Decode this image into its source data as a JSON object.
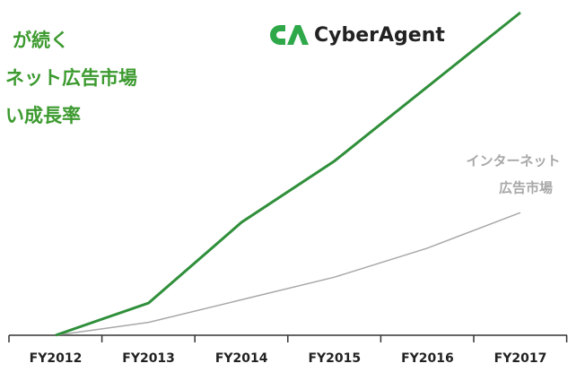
{
  "chart_data": {
    "type": "line",
    "title_lines": [
      "が続く",
      "ネット広告市場",
      "い成長率"
    ],
    "logo": "CyberAgent",
    "categories": [
      "FY2012",
      "FY2013",
      "FY2014",
      "FY2015",
      "FY2016",
      "FY2017"
    ],
    "ylim": [
      0,
      100
    ],
    "series": [
      {
        "color": "#2f8f3a",
        "values": [
          0,
          10,
          35,
          54,
          77,
          100
        ]
      },
      {
        "color": "#a8a8a8",
        "label_lines": [
          "インターネット",
          "広告市場"
        ],
        "values": [
          0,
          4,
          11,
          18,
          27,
          38
        ]
      }
    ]
  }
}
